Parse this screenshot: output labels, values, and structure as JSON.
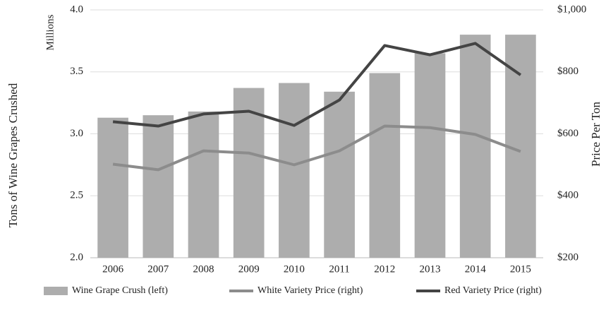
{
  "chart_data": {
    "type": "bar",
    "y_unit_label": "Millions",
    "ylabel": "Tons of Wine Grapes Crushed",
    "y2label": "Price Per Ton",
    "categories": [
      "2006",
      "2007",
      "2008",
      "2009",
      "2010",
      "2011",
      "2012",
      "2013",
      "2014",
      "2015"
    ],
    "series": [
      {
        "name": "Wine Grape Crush (left)",
        "type": "bar",
        "color": "#adadad",
        "values": [
          3.13,
          3.15,
          3.18,
          3.37,
          3.41,
          3.34,
          3.49,
          3.65,
          3.8,
          3.8
        ]
      },
      {
        "name": "White Variety Price (right)",
        "type": "line",
        "axis": "y2",
        "color": "#8c8c8c",
        "values": [
          502,
          484,
          545,
          538,
          500,
          545,
          625,
          620,
          598,
          543
        ]
      },
      {
        "name": "Red Variety Price (right)",
        "type": "line",
        "axis": "y2",
        "color": "#444444",
        "values": [
          639,
          625,
          664,
          673,
          627,
          709,
          885,
          855,
          892,
          790
        ]
      }
    ],
    "ylim": [
      2.0,
      4.0
    ],
    "yticks": [
      {
        "value": 2.0,
        "label": "2.0"
      },
      {
        "value": 2.5,
        "label": "2.5"
      },
      {
        "value": 3.0,
        "label": "3.0"
      },
      {
        "value": 3.5,
        "label": "3.5"
      },
      {
        "value": 4.0,
        "label": "4.0"
      }
    ],
    "y2lim": [
      200,
      1000
    ],
    "y2ticks": [
      {
        "value": 200,
        "label": "$200"
      },
      {
        "value": 400,
        "label": "$400"
      },
      {
        "value": 600,
        "label": "$600"
      },
      {
        "value": 800,
        "label": "$800"
      },
      {
        "value": 1000,
        "label": "$1,000"
      }
    ],
    "grid": true,
    "legend": "bottom"
  }
}
